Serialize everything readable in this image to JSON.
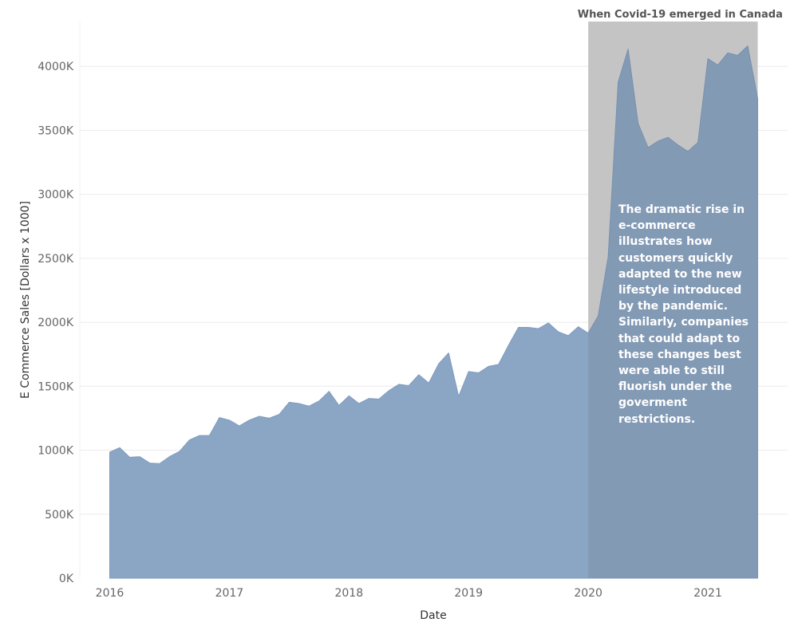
{
  "chart_data": {
    "type": "area",
    "xlabel": "Date",
    "ylabel": "E Commerce Sales [Dollars x 1000]",
    "ylim": [
      0,
      4350
    ],
    "y_ticks": [
      0,
      500,
      1000,
      1500,
      2000,
      2500,
      3000,
      3500,
      4000
    ],
    "y_tick_labels": [
      "0K",
      "500K",
      "1000K",
      "1500K",
      "2000K",
      "2500K",
      "3000K",
      "3500K",
      "4000K"
    ],
    "x_tick_labels": [
      "2016",
      "2017",
      "2018",
      "2019",
      "2020",
      "2021"
    ],
    "x_range": [
      "2015-10",
      "2021-09"
    ],
    "grid": true,
    "color": "#8BA6C5",
    "series": [
      {
        "x": [
          "2016-01",
          "2016-02",
          "2016-03",
          "2016-04",
          "2016-05",
          "2016-06",
          "2016-07",
          "2016-08",
          "2016-09",
          "2016-10",
          "2016-11",
          "2016-12",
          "2017-01",
          "2017-02",
          "2017-03",
          "2017-04",
          "2017-05",
          "2017-06",
          "2017-07",
          "2017-08",
          "2017-09",
          "2017-10",
          "2017-11",
          "2017-12",
          "2018-01",
          "2018-02",
          "2018-03",
          "2018-04",
          "2018-05",
          "2018-06",
          "2018-07",
          "2018-08",
          "2018-09",
          "2018-10",
          "2018-11",
          "2018-12",
          "2019-01",
          "2019-02",
          "2019-03",
          "2019-04",
          "2019-05",
          "2019-06",
          "2019-07",
          "2019-08",
          "2019-09",
          "2019-10",
          "2019-11",
          "2019-12",
          "2020-01",
          "2020-02",
          "2020-03",
          "2020-04",
          "2020-05",
          "2020-06",
          "2020-07",
          "2020-08",
          "2020-09",
          "2020-10",
          "2020-11",
          "2020-12",
          "2021-01",
          "2021-02",
          "2021-03",
          "2021-04",
          "2021-05",
          "2021-06"
        ],
        "values": [
          985,
          1020,
          945,
          950,
          900,
          895,
          950,
          990,
          1080,
          1115,
          1115,
          1255,
          1235,
          1190,
          1235,
          1265,
          1250,
          1280,
          1375,
          1365,
          1345,
          1385,
          1460,
          1350,
          1425,
          1365,
          1405,
          1400,
          1465,
          1515,
          1505,
          1590,
          1525,
          1675,
          1760,
          1420,
          1615,
          1605,
          1655,
          1670,
          1820,
          1960,
          1960,
          1950,
          1995,
          1925,
          1895,
          1965,
          1915,
          2050,
          2510,
          3875,
          4135,
          3555,
          3365,
          3415,
          3445,
          3385,
          3335,
          3405,
          4060,
          4010,
          4105,
          4085,
          4160,
          3750
        ]
      }
    ],
    "highlight": {
      "from": "2020-01",
      "to": "2021-06",
      "label": "When Covid-19 emerged in Canada",
      "color": "#D6D6D6"
    },
    "annotation": "The dramatic rise in e-commerce illustrates how customers quickly adapted to the new lifestyle introduced by the pandemic. Similarly, companies that could adapt to these changes best were able to still fluorish under the goverment restrictions."
  }
}
